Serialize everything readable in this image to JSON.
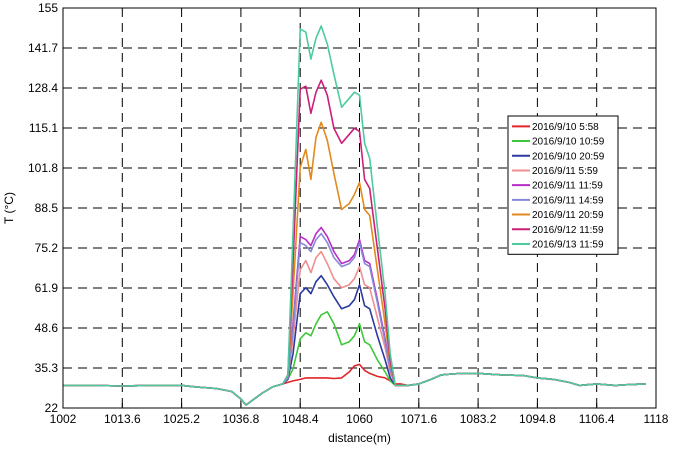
{
  "chart_data": {
    "type": "line",
    "xlabel": "distance(m)",
    "ylabel": "T (°C)",
    "xlim": [
      1002,
      1118
    ],
    "ylim": [
      22,
      155
    ],
    "x_ticks": [
      "1002",
      "1013.6",
      "1025.2",
      "1036.8",
      "1048.4",
      "1060",
      "1071.6",
      "1083.2",
      "1094.8",
      "1106.4",
      "1118"
    ],
    "y_ticks": [
      "22",
      "35.3",
      "48.6",
      "61.9",
      "75.2",
      "88.5",
      "101.8",
      "115.1",
      "128.4",
      "141.7",
      "155"
    ],
    "grid": true,
    "legend_position": "right",
    "x": [
      1002,
      1008,
      1013.6,
      1019,
      1025.2,
      1028,
      1032,
      1035,
      1036.8,
      1037.8,
      1039,
      1041,
      1043,
      1045,
      1046,
      1047,
      1048.4,
      1049.5,
      1050.5,
      1051.5,
      1052.5,
      1053.7,
      1055,
      1056.5,
      1058,
      1059,
      1060,
      1061,
      1062,
      1063.5,
      1065,
      1066,
      1067,
      1068,
      1069.5,
      1071.6,
      1074,
      1076,
      1078,
      1080,
      1083.2,
      1088,
      1092,
      1094.8,
      1098,
      1101,
      1103,
      1106.4,
      1110,
      1113,
      1116
    ],
    "series": [
      {
        "name": "2016/9/10 5:58",
        "color": "#e0242a",
        "values": [
          29.5,
          29.5,
          29.3,
          29.5,
          29.5,
          29.0,
          28.5,
          27.5,
          25,
          23,
          24.5,
          27,
          29,
          30,
          30.5,
          31,
          31.5,
          32,
          32,
          32,
          32,
          32,
          31.8,
          32,
          34,
          36,
          36.5,
          34.5,
          33.5,
          32.5,
          32,
          31,
          30,
          30,
          29.5,
          30,
          31.5,
          33,
          33.3,
          33.5,
          33.5,
          33,
          32.8,
          32,
          31.5,
          30.5,
          29.5,
          30,
          29.5,
          29.8,
          30
        ]
      },
      {
        "name": "2016/9/10 10:59",
        "color": "#3fc83c",
        "values": [
          29.5,
          29.5,
          29.3,
          29.5,
          29.5,
          29.0,
          28.5,
          27.5,
          25,
          23,
          24.5,
          27,
          29,
          30,
          31.5,
          35,
          45,
          47,
          46,
          50,
          53,
          54,
          50,
          43,
          44,
          46,
          50,
          44,
          43,
          38,
          34,
          31,
          29.5,
          29.5,
          29.5,
          30,
          31.5,
          33,
          33.3,
          33.5,
          33.5,
          33,
          32.8,
          32,
          31.5,
          30.5,
          29.5,
          30,
          29.5,
          29.8,
          30
        ]
      },
      {
        "name": "2016/9/10 20:59",
        "color": "#2a3aa0",
        "values": [
          29.5,
          29.5,
          29.3,
          29.5,
          29.5,
          29.0,
          28.5,
          27.5,
          25,
          23,
          24.5,
          27,
          29,
          30,
          31.5,
          40,
          60,
          62,
          60,
          64,
          66,
          63,
          59,
          55,
          56,
          58,
          63,
          56,
          55,
          46,
          38,
          32,
          29.5,
          29.5,
          29.5,
          30,
          31.5,
          33,
          33.3,
          33.5,
          33.5,
          33,
          32.8,
          32,
          31.5,
          30.5,
          29.5,
          30,
          29.5,
          29.8,
          30
        ]
      },
      {
        "name": "2016/9/11 5:59",
        "color": "#ee9090",
        "values": [
          29.5,
          29.5,
          29.3,
          29.5,
          29.5,
          29.0,
          28.5,
          27.5,
          25,
          23,
          24.5,
          27,
          29,
          30,
          32,
          45,
          68,
          71,
          67,
          72,
          74,
          70,
          65,
          62,
          63,
          65,
          69,
          63,
          62,
          52,
          42,
          34,
          29.5,
          29.5,
          29.5,
          30,
          31.5,
          33,
          33.3,
          33.5,
          33.5,
          33,
          32.8,
          32,
          31.5,
          30.5,
          29.5,
          30,
          29.5,
          29.8,
          30
        ]
      },
      {
        "name": "2016/9/11 11:59",
        "color": "#b62ec4",
        "values": [
          29.5,
          29.5,
          29.3,
          29.5,
          29.5,
          29.0,
          28.5,
          27.5,
          25,
          23,
          24.5,
          27,
          29,
          30,
          32,
          50,
          79,
          78,
          76,
          80,
          82,
          79,
          74,
          70,
          71,
          73,
          78,
          71,
          70,
          58,
          45,
          35,
          29.5,
          29.5,
          29.5,
          30,
          31.5,
          33,
          33.3,
          33.5,
          33.5,
          33,
          32.8,
          32,
          31.5,
          30.5,
          29.5,
          30,
          29.5,
          29.8,
          30
        ]
      },
      {
        "name": "2016/9/11 14:59",
        "color": "#8888d8",
        "values": [
          29.5,
          29.5,
          29.3,
          29.5,
          29.5,
          29.0,
          28.5,
          27.5,
          25,
          23,
          24.5,
          27,
          29,
          30,
          32,
          48,
          77,
          76,
          74,
          78,
          80,
          77,
          72,
          69,
          70,
          72,
          77,
          70,
          69,
          57,
          44,
          35,
          29.5,
          29.5,
          29.5,
          30,
          31.5,
          33,
          33.3,
          33.5,
          33.5,
          33,
          32.8,
          32,
          31.5,
          30.5,
          29.5,
          30,
          29.5,
          29.8,
          30
        ]
      },
      {
        "name": "2016/9/11 20:59",
        "color": "#e08a1c",
        "values": [
          29.5,
          29.5,
          29.3,
          29.5,
          29.5,
          29.0,
          28.5,
          27.5,
          25,
          23,
          24.5,
          27,
          29,
          30,
          33,
          60,
          102,
          108,
          98,
          112,
          117,
          111,
          100,
          88,
          90,
          93,
          97,
          88,
          86,
          68,
          50,
          37,
          29.5,
          29.5,
          29.5,
          30,
          31.5,
          33,
          33.3,
          33.5,
          33.5,
          33,
          32.8,
          32,
          31.5,
          30.5,
          29.5,
          30,
          29.5,
          29.8,
          30
        ]
      },
      {
        "name": "2016/9/12 11:59",
        "color": "#cc1f7a",
        "values": [
          29.5,
          29.5,
          29.3,
          29.5,
          29.5,
          29.0,
          28.5,
          27.5,
          25,
          23,
          24.5,
          27,
          29,
          30,
          33,
          70,
          128,
          129,
          120,
          127,
          131,
          126,
          115,
          110,
          113,
          115,
          114,
          98,
          95,
          75,
          55,
          38,
          29.5,
          29.5,
          29.5,
          30,
          31.5,
          33,
          33.3,
          33.5,
          33.5,
          33,
          32.8,
          32,
          31.5,
          30.5,
          29.5,
          30,
          29.5,
          29.8,
          30
        ]
      },
      {
        "name": "2016/9/13 11:59",
        "color": "#4ecb9c",
        "values": [
          29.5,
          29.5,
          29.3,
          29.5,
          29.5,
          29.0,
          28.5,
          27.5,
          25,
          23,
          24.5,
          27,
          29,
          30,
          33,
          80,
          148,
          147,
          138,
          145,
          149,
          143,
          133,
          122,
          125,
          127,
          126,
          110,
          105,
          82,
          60,
          40,
          29.5,
          29.5,
          29.5,
          30,
          31.5,
          33,
          33.3,
          33.5,
          33.5,
          33,
          32.8,
          32,
          31.5,
          30.5,
          29.5,
          30,
          29.5,
          29.8,
          30
        ]
      }
    ]
  }
}
